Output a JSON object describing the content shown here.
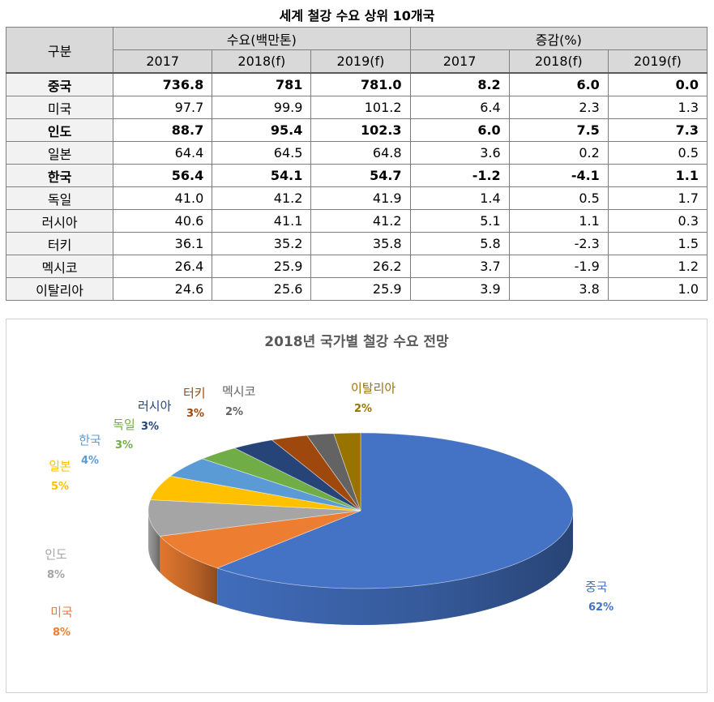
{
  "table": {
    "title": "세계 철강 수요 상위 10개국",
    "header_group": "구분",
    "header_demand": "수요(백만톤)",
    "header_change": "증감(%)",
    "years": [
      "2017",
      "2018(f)",
      "2019(f)"
    ],
    "rows": [
      {
        "country": "중국",
        "bold": true,
        "demand": [
          "736.8",
          "781",
          "781.0"
        ],
        "change": [
          "8.2",
          "6.0",
          "0.0"
        ]
      },
      {
        "country": "미국",
        "bold": false,
        "demand": [
          "97.7",
          "99.9",
          "101.2"
        ],
        "change": [
          "6.4",
          "2.3",
          "1.3"
        ]
      },
      {
        "country": "인도",
        "bold": true,
        "demand": [
          "88.7",
          "95.4",
          "102.3"
        ],
        "change": [
          "6.0",
          "7.5",
          "7.3"
        ]
      },
      {
        "country": "일본",
        "bold": false,
        "demand": [
          "64.4",
          "64.5",
          "64.8"
        ],
        "change": [
          "3.6",
          "0.2",
          "0.5"
        ]
      },
      {
        "country": "한국",
        "bold": true,
        "demand": [
          "56.4",
          "54.1",
          "54.7"
        ],
        "change": [
          "-1.2",
          "-4.1",
          "1.1"
        ]
      },
      {
        "country": "독일",
        "bold": false,
        "demand": [
          "41.0",
          "41.2",
          "41.9"
        ],
        "change": [
          "1.4",
          "0.5",
          "1.7"
        ]
      },
      {
        "country": "러시아",
        "bold": false,
        "demand": [
          "40.6",
          "41.1",
          "41.2"
        ],
        "change": [
          "5.1",
          "1.1",
          "0.3"
        ]
      },
      {
        "country": "터키",
        "bold": false,
        "demand": [
          "36.1",
          "35.2",
          "35.8"
        ],
        "change": [
          "5.8",
          "-2.3",
          "1.5"
        ]
      },
      {
        "country": "멕시코",
        "bold": false,
        "demand": [
          "26.4",
          "25.9",
          "26.2"
        ],
        "change": [
          "3.7",
          "-1.9",
          "1.2"
        ]
      },
      {
        "country": "이탈리아",
        "bold": false,
        "demand": [
          "24.6",
          "25.6",
          "25.9"
        ],
        "change": [
          "3.9",
          "3.8",
          "1.0"
        ]
      }
    ]
  },
  "chart_data": {
    "type": "pie",
    "title": "2018년 국가별 철강 수요 전망",
    "labels": [
      "중국",
      "미국",
      "인도",
      "일본",
      "한국",
      "독일",
      "러시아",
      "터키",
      "멕시코",
      "이탈리아"
    ],
    "values": [
      781,
      99.9,
      95.4,
      64.5,
      54.1,
      41.2,
      41.1,
      35.2,
      25.9,
      25.6
    ],
    "percent_labels": [
      "62%",
      "8%",
      "8%",
      "5%",
      "4%",
      "3%",
      "3%",
      "3%",
      "2%",
      "2%"
    ],
    "colors": [
      "#4472C4",
      "#ED7D31",
      "#A5A5A5",
      "#FFC000",
      "#5B9BD5",
      "#70AD47",
      "#264478",
      "#9E480E",
      "#636363",
      "#997300"
    ],
    "style": "3d-pie",
    "legend": "none"
  }
}
